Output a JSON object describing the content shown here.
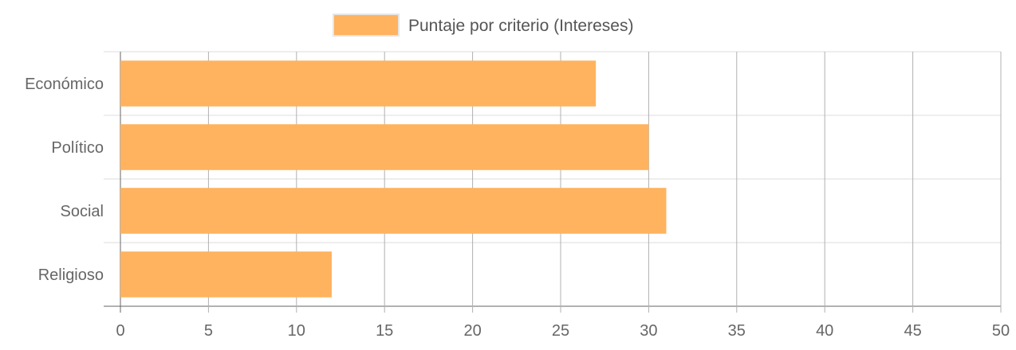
{
  "chart_data": {
    "type": "bar",
    "orientation": "horizontal",
    "categories": [
      "Económico",
      "Político",
      "Social",
      "Religioso"
    ],
    "series": [
      {
        "name": "Puntaje por criterio (Intereses)",
        "values": [
          27,
          30,
          31,
          12
        ],
        "color": "#ffb35f"
      }
    ],
    "xlim": [
      0,
      50
    ],
    "x_ticks": [
      "0",
      "5",
      "10",
      "15",
      "20",
      "25",
      "30",
      "35",
      "40",
      "45",
      "50"
    ],
    "grid": true,
    "legend_position": "top"
  }
}
